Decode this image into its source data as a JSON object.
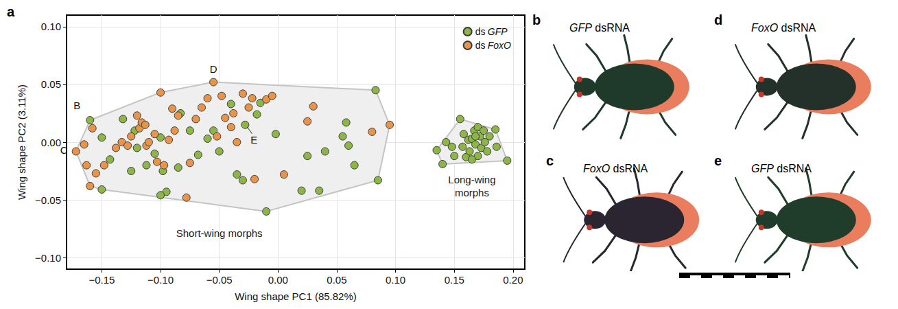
{
  "chart_data": {
    "type": "scatter",
    "letter": "a",
    "xlabel": "Wing shape PC1 (85.82%)",
    "ylabel": "Wing shape PC2 (3.11%)",
    "xlim": [
      -0.18,
      0.21
    ],
    "ylim": [
      -0.11,
      0.11
    ],
    "xticks": [
      {
        "value": -0.15,
        "label": "−0.15"
      },
      {
        "value": -0.1,
        "label": "−0.10"
      },
      {
        "value": -0.05,
        "label": "−0.05"
      },
      {
        "value": 0,
        "label": "0.00"
      },
      {
        "value": 0.05,
        "label": "0.05"
      },
      {
        "value": 0.1,
        "label": "0.10"
      },
      {
        "value": 0.15,
        "label": "0.15"
      },
      {
        "value": 0.2,
        "label": "0.20"
      }
    ],
    "yticks": [
      {
        "value": -0.1,
        "label": "−0.10"
      },
      {
        "value": -0.05,
        "label": "−0.05"
      },
      {
        "value": 0,
        "label": "0.00"
      },
      {
        "value": 0.05,
        "label": "0.05"
      },
      {
        "value": 0.1,
        "label": "0.10"
      }
    ],
    "grid": true,
    "legend": "upper right",
    "series": [
      {
        "name": "ds GFP",
        "color": "#8db547",
        "marker": "circle",
        "x": [
          -0.16,
          -0.15,
          -0.143,
          -0.15,
          -0.122,
          -0.12,
          -0.105,
          -0.1,
          -0.098,
          -0.095,
          -0.1,
          -0.085,
          -0.083,
          -0.075,
          -0.068,
          -0.06,
          -0.055,
          -0.05,
          -0.04,
          -0.035,
          -0.03,
          -0.028,
          -0.018,
          -0.015,
          -0.01,
          -0.002,
          0.02,
          0.025,
          0.035,
          0.04,
          0.055,
          0.06,
          0.058,
          0.065,
          0.083,
          0.085,
          -0.125,
          -0.132,
          -0.112,
          0.135,
          0.14,
          0.143,
          0.148,
          0.15,
          0.155,
          0.157,
          0.158,
          0.16,
          0.162,
          0.163,
          0.165,
          0.167,
          0.168,
          0.17,
          0.17,
          0.172,
          0.173,
          0.175,
          0.176,
          0.178,
          0.18,
          0.185,
          0.186,
          0.195,
          0.165,
          0.168
        ],
        "y": [
          0.019,
          0.004,
          -0.015,
          -0.041,
          0.01,
          -0.005,
          -0.01,
          0.004,
          -0.025,
          -0.043,
          -0.046,
          -0.022,
          0.025,
          0.01,
          -0.011,
          0.003,
          0.01,
          -0.008,
          0.033,
          -0.028,
          -0.033,
          0.015,
          0.024,
          0.034,
          -0.06,
          0.007,
          -0.042,
          -0.012,
          -0.042,
          -0.008,
          0.005,
          -0.003,
          0.017,
          -0.02,
          0.045,
          -0.033,
          -0.025,
          0.02,
          -0.02,
          -0.007,
          -0.019,
          0.0,
          -0.004,
          -0.012,
          0.02,
          -0.004,
          0.007,
          -0.013,
          0.002,
          -0.008,
          0.003,
          0.01,
          -0.002,
          0.013,
          -0.012,
          0.005,
          -0.005,
          0.01,
          0.0,
          -0.008,
          0.005,
          0.011,
          -0.004,
          -0.016,
          -0.015,
          0.005
        ],
        "morph": [
          "Short-wing morphs",
          "Short-wing morphs",
          "Short-wing morphs",
          "Short-wing morphs",
          "Short-wing morphs",
          "Short-wing morphs",
          "Short-wing morphs",
          "Short-wing morphs",
          "Short-wing morphs",
          "Short-wing morphs",
          "Short-wing morphs",
          "Short-wing morphs",
          "Short-wing morphs",
          "Short-wing morphs",
          "Short-wing morphs",
          "Short-wing morphs",
          "Short-wing morphs",
          "Short-wing morphs",
          "Short-wing morphs",
          "Short-wing morphs",
          "Short-wing morphs",
          "Short-wing morphs",
          "Short-wing morphs",
          "Short-wing morphs",
          "Short-wing morphs",
          "Short-wing morphs",
          "Short-wing morphs",
          "Short-wing morphs",
          "Short-wing morphs",
          "Short-wing morphs",
          "Short-wing morphs",
          "Short-wing morphs",
          "Short-wing morphs",
          "Short-wing morphs",
          "Short-wing morphs",
          "Short-wing morphs",
          "Short-wing morphs",
          "Short-wing morphs",
          "Short-wing morphs",
          "Long-wing morphs",
          "Long-wing morphs",
          "Long-wing morphs",
          "Long-wing morphs",
          "Long-wing morphs",
          "Long-wing morphs",
          "Long-wing morphs",
          "Long-wing morphs",
          "Long-wing morphs",
          "Long-wing morphs",
          "Long-wing morphs",
          "Long-wing morphs",
          "Long-wing morphs",
          "Long-wing morphs",
          "Long-wing morphs",
          "Long-wing morphs",
          "Long-wing morphs",
          "Long-wing morphs",
          "Long-wing morphs",
          "Long-wing morphs",
          "Long-wing morphs",
          "Long-wing morphs",
          "Long-wing morphs",
          "Long-wing morphs",
          "Long-wing morphs",
          "Long-wing morphs",
          "Long-wing morphs"
        ]
      },
      {
        "name": "ds FoxO",
        "color": "#e8944b",
        "marker": "circle",
        "x": [
          -0.172,
          -0.165,
          -0.163,
          -0.16,
          -0.158,
          -0.155,
          -0.148,
          -0.138,
          -0.133,
          -0.128,
          -0.125,
          -0.12,
          -0.118,
          -0.116,
          -0.113,
          -0.112,
          -0.11,
          -0.105,
          -0.103,
          -0.1,
          -0.097,
          -0.093,
          -0.09,
          -0.088,
          -0.085,
          -0.078,
          -0.075,
          -0.07,
          -0.065,
          -0.06,
          -0.055,
          -0.052,
          -0.048,
          -0.045,
          -0.04,
          -0.038,
          -0.035,
          -0.03,
          -0.025,
          -0.022,
          -0.02,
          -0.01,
          -0.005,
          0.005,
          0.025,
          0.03,
          0.08,
          0.095
        ],
        "y": [
          -0.008,
          -0.002,
          -0.02,
          -0.038,
          0.012,
          -0.027,
          -0.02,
          -0.005,
          0.0,
          -0.003,
          0.005,
          0.023,
          0.012,
          0.017,
          0.015,
          -0.003,
          0.0,
          0.007,
          -0.017,
          0.043,
          -0.02,
          0.002,
          0.029,
          0.01,
          0.023,
          -0.048,
          -0.018,
          0.02,
          0.03,
          0.038,
          0.052,
          0.005,
          0.04,
          0.021,
          0.013,
          0.025,
          0.0,
          0.042,
          0.03,
          0.038,
          -0.032,
          0.037,
          0.04,
          -0.028,
          0.018,
          0.031,
          0.009,
          0.015
        ],
        "morph": [
          "Short-wing morphs",
          "Short-wing morphs",
          "Short-wing morphs",
          "Short-wing morphs",
          "Short-wing morphs",
          "Short-wing morphs",
          "Short-wing morphs",
          "Short-wing morphs",
          "Short-wing morphs",
          "Short-wing morphs",
          "Short-wing morphs",
          "Short-wing morphs",
          "Short-wing morphs",
          "Short-wing morphs",
          "Short-wing morphs",
          "Short-wing morphs",
          "Short-wing morphs",
          "Short-wing morphs",
          "Short-wing morphs",
          "Short-wing morphs",
          "Short-wing morphs",
          "Short-wing morphs",
          "Short-wing morphs",
          "Short-wing morphs",
          "Short-wing morphs",
          "Short-wing morphs",
          "Short-wing morphs",
          "Short-wing morphs",
          "Short-wing morphs",
          "Short-wing morphs",
          "Short-wing morphs",
          "Short-wing morphs",
          "Short-wing morphs",
          "Short-wing morphs",
          "Short-wing morphs",
          "Short-wing morphs",
          "Short-wing morphs",
          "Short-wing morphs",
          "Short-wing morphs",
          "Short-wing morphs",
          "Short-wing morphs",
          "Short-wing morphs",
          "Short-wing morphs",
          "Short-wing morphs",
          "Short-wing morphs",
          "Short-wing morphs",
          "Short-wing morphs",
          "Short-wing morphs"
        ]
      }
    ],
    "groups": [
      {
        "label": "Short-wing morphs",
        "x": -0.05,
        "y": -0.079
      },
      {
        "label": "Long-wing morphs",
        "x": 0.165,
        "y": -0.038
      }
    ],
    "annotations": [
      {
        "text": "B",
        "x": -0.16,
        "y": 0.019
      },
      {
        "text": "C",
        "x": -0.172,
        "y": -0.008
      },
      {
        "text": "D",
        "x": -0.055,
        "y": 0.052
      },
      {
        "text": "E",
        "x": -0.028,
        "y": 0.015
      }
    ]
  },
  "photos": [
    {
      "letter": "b",
      "caption": "GFP dsRNA"
    },
    {
      "letter": "c",
      "caption": "FoxO dsRNA"
    },
    {
      "letter": "d",
      "caption": "FoxO dsRNA"
    },
    {
      "letter": "e",
      "caption": "GFP dsRNA"
    }
  ]
}
